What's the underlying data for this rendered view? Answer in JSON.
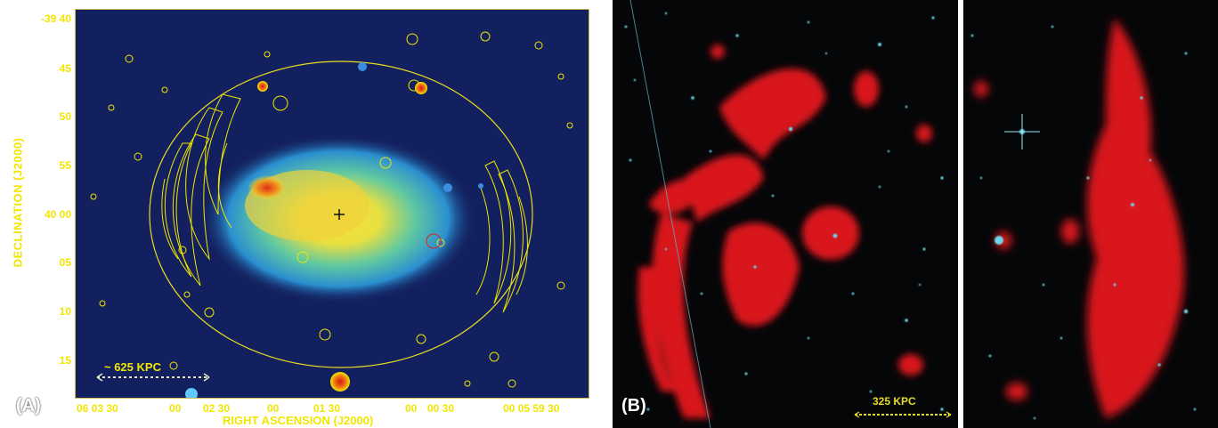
{
  "panel_a": {
    "tag": "(A)",
    "y_axis_label": "DECLINATION (J2000)",
    "x_axis_label": "RIGHT ASCENSION (J2000)",
    "y_ticks": [
      "-39 40",
      "45",
      "50",
      "55",
      "40 00",
      "05",
      "10",
      "15"
    ],
    "x_ticks": [
      "06 03 30",
      "00",
      "02 30",
      "00",
      "01 30",
      "00",
      "00 30",
      "00 05 59 30"
    ],
    "scale_bar_label": "~ 625 KPC",
    "colors": {
      "background": "#13205f",
      "contours": "#f2e600",
      "frame": "#c8b955"
    }
  },
  "panel_b": {
    "tag": "(B)",
    "scale_bar_label": "325 KPC",
    "colors": {
      "radio": "#e0181c",
      "stars": "#6fd6ea",
      "background": "#050608"
    }
  }
}
